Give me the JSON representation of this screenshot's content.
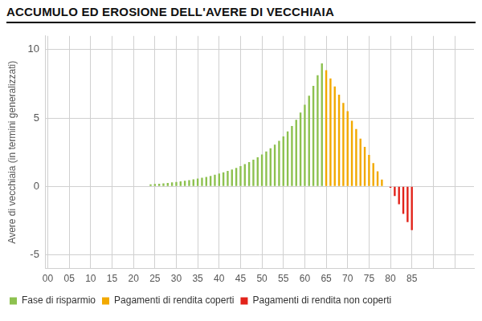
{
  "chart_data": {
    "type": "bar",
    "title": "ACCUMULO ED EROSIONE DELL'AVERE DI VECCHIAIA",
    "y_label": "Avere di vecchiaia (in termini generalizzati)",
    "categories": [
      "00",
      null,
      null,
      null,
      null,
      "05",
      null,
      null,
      null,
      null,
      "10",
      null,
      null,
      null,
      null,
      "15",
      null,
      null,
      null,
      null,
      "20",
      null,
      null,
      null,
      null,
      "25",
      null,
      null,
      null,
      null,
      "30",
      null,
      null,
      null,
      null,
      "35",
      null,
      null,
      null,
      null,
      "40",
      null,
      null,
      null,
      null,
      "45",
      null,
      null,
      null,
      null,
      "50",
      null,
      null,
      null,
      null,
      "55",
      null,
      null,
      null,
      null,
      "60",
      null,
      null,
      null,
      null,
      "65",
      null,
      null,
      null,
      null,
      "70",
      null,
      null,
      null,
      null,
      "75",
      null,
      null,
      null,
      null,
      "80",
      null,
      null,
      null,
      null,
      "85",
      null,
      null,
      null,
      null,
      null,
      null,
      null,
      null,
      null,
      null,
      null,
      null,
      null,
      null
    ],
    "series": [
      {
        "name": "Fase di risparmio",
        "color": "#8dc14f",
        "values": [
          null,
          null,
          null,
          null,
          null,
          null,
          null,
          null,
          null,
          null,
          null,
          null,
          null,
          null,
          null,
          null,
          null,
          null,
          null,
          null,
          null,
          null,
          null,
          null,
          0.15,
          0.18,
          0.2,
          0.23,
          0.26,
          0.3,
          0.33,
          0.37,
          0.41,
          0.46,
          0.51,
          0.57,
          0.63,
          0.7,
          0.77,
          0.85,
          0.94,
          1.03,
          1.13,
          1.24,
          1.36,
          1.49,
          1.63,
          1.78,
          1.95,
          2.13,
          2.33,
          2.55,
          2.79,
          3.05,
          3.34,
          3.66,
          4.02,
          4.42,
          4.88,
          5.4,
          5.98,
          6.63,
          7.35,
          8.13,
          9,
          null,
          null,
          null,
          null,
          null,
          null,
          null,
          null,
          null,
          null,
          null,
          null,
          null,
          null,
          null,
          null,
          null,
          null,
          null,
          null,
          null,
          null,
          null,
          null,
          null,
          null,
          null,
          null,
          null,
          null,
          null,
          null,
          null,
          null,
          null
        ]
      },
      {
        "name": "Pagamenti di rendita coperti",
        "color": "#f2a900",
        "values": [
          null,
          null,
          null,
          null,
          null,
          null,
          null,
          null,
          null,
          null,
          null,
          null,
          null,
          null,
          null,
          null,
          null,
          null,
          null,
          null,
          null,
          null,
          null,
          null,
          null,
          null,
          null,
          null,
          null,
          null,
          null,
          null,
          null,
          null,
          null,
          null,
          null,
          null,
          null,
          null,
          null,
          null,
          null,
          null,
          null,
          null,
          null,
          null,
          null,
          null,
          null,
          null,
          null,
          null,
          null,
          null,
          null,
          null,
          null,
          null,
          null,
          null,
          null,
          null,
          null,
          8.5,
          7.9,
          7.3,
          6.7,
          6.1,
          5.5,
          4.8,
          4.2,
          3.5,
          2.9,
          2.3,
          1.7,
          1.1,
          0.5,
          null,
          null,
          null,
          null,
          null,
          null,
          null,
          null,
          null,
          null,
          null,
          null,
          null,
          null,
          null,
          null,
          null,
          null,
          null,
          null,
          null
        ]
      },
      {
        "name": "Pagamenti di rendita non coperti",
        "color": "#e2231a",
        "values": [
          null,
          null,
          null,
          null,
          null,
          null,
          null,
          null,
          null,
          null,
          null,
          null,
          null,
          null,
          null,
          null,
          null,
          null,
          null,
          null,
          null,
          null,
          null,
          null,
          null,
          null,
          null,
          null,
          null,
          null,
          null,
          null,
          null,
          null,
          null,
          null,
          null,
          null,
          null,
          null,
          null,
          null,
          null,
          null,
          null,
          null,
          null,
          null,
          null,
          null,
          null,
          null,
          null,
          null,
          null,
          null,
          null,
          null,
          null,
          null,
          null,
          null,
          null,
          null,
          null,
          null,
          null,
          null,
          null,
          null,
          null,
          null,
          null,
          null,
          null,
          null,
          null,
          null,
          null,
          null,
          -0.1,
          -0.7,
          -1.3,
          -2.0,
          -2.6,
          -3.2,
          null,
          null,
          null,
          null,
          null,
          null,
          null,
          null,
          null,
          null,
          null,
          null,
          null,
          null
        ]
      }
    ],
    "ylim": [
      -6,
      11
    ],
    "yticks": [
      -5,
      0,
      5,
      10
    ],
    "grid": true,
    "legend": "bottom"
  }
}
